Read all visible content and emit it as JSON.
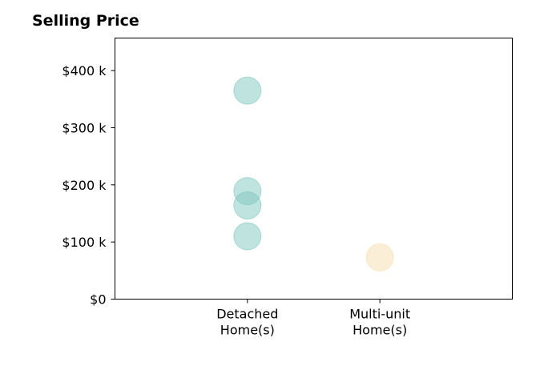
{
  "chart_data": {
    "type": "scatter",
    "title": "Selling Price",
    "xlabel": "",
    "ylabel": "",
    "categories": [
      [
        "Detached",
        "Home(s)"
      ],
      [
        "Multi-unit",
        "Home(s)"
      ]
    ],
    "y_ticks": [
      {
        "value": 0,
        "label": "$0"
      },
      {
        "value": 100000,
        "label": "$100 k"
      },
      {
        "value": 200000,
        "label": "$200 k"
      },
      {
        "value": 300000,
        "label": "$300 k"
      },
      {
        "value": 400000,
        "label": "$400 k"
      }
    ],
    "ylim": [
      0,
      457000
    ],
    "xlim": [
      -1,
      2
    ],
    "grid": false,
    "series": [
      {
        "category_index": 0,
        "color": "#7fc8bd",
        "values": [
          365000,
          189000,
          164000,
          110000
        ]
      },
      {
        "category_index": 1,
        "color": "#f5ddb0",
        "values": [
          73000
        ]
      }
    ]
  }
}
